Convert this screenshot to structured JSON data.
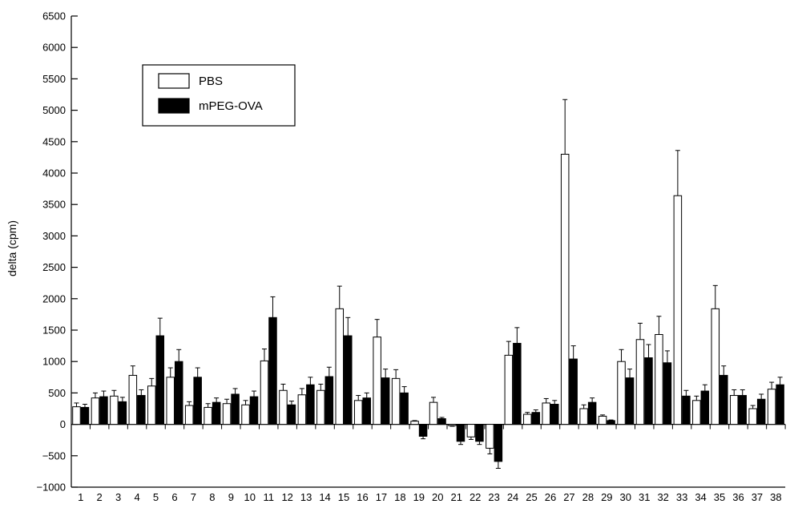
{
  "chart_data": {
    "type": "bar",
    "title": "",
    "xlabel": "",
    "ylabel": "delta (cpm)",
    "ylim": [
      -1000,
      6500
    ],
    "yticks": [
      -1000,
      -500,
      0,
      500,
      1000,
      1500,
      2000,
      2500,
      3000,
      3500,
      4000,
      4500,
      5000,
      5500,
      6000,
      6500
    ],
    "grid": false,
    "legend_position": "upper-left",
    "categories": [
      "1",
      "2",
      "3",
      "4",
      "5",
      "6",
      "7",
      "8",
      "9",
      "10",
      "11",
      "12",
      "13",
      "14",
      "15",
      "16",
      "17",
      "18",
      "19",
      "20",
      "21",
      "22",
      "23",
      "24",
      "25",
      "26",
      "27",
      "28",
      "29",
      "30",
      "31",
      "32",
      "33",
      "34",
      "35",
      "36",
      "37",
      "38"
    ],
    "series": [
      {
        "name": "PBS",
        "fill": "#ffffff",
        "values": [
          280,
          420,
          450,
          780,
          610,
          750,
          300,
          270,
          330,
          310,
          1010,
          540,
          470,
          540,
          1840,
          380,
          1390,
          730,
          50,
          350,
          -20,
          -200,
          -380,
          1100,
          160,
          340,
          4300,
          250,
          130,
          1000,
          1350,
          1430,
          3640,
          380,
          1840,
          460,
          250,
          560
        ],
        "errors": [
          60,
          80,
          90,
          150,
          120,
          150,
          60,
          60,
          70,
          70,
          190,
          100,
          100,
          100,
          360,
          80,
          280,
          140,
          10,
          80,
          10,
          40,
          90,
          220,
          30,
          70,
          870,
          60,
          20,
          190,
          260,
          290,
          720,
          70,
          370,
          90,
          50,
          110
        ]
      },
      {
        "name": "mPEG-OVA",
        "fill": "#000000",
        "values": [
          270,
          440,
          360,
          460,
          1410,
          1000,
          750,
          350,
          480,
          440,
          1700,
          310,
          630,
          760,
          1410,
          420,
          740,
          500,
          -190,
          90,
          -270,
          -270,
          -590,
          1290,
          190,
          320,
          1040,
          350,
          60,
          740,
          1060,
          980,
          450,
          530,
          780,
          460,
          400,
          630
        ],
        "errors": [
          50,
          90,
          70,
          90,
          280,
          190,
          150,
          70,
          90,
          90,
          330,
          60,
          120,
          150,
          290,
          80,
          140,
          100,
          40,
          20,
          50,
          50,
          110,
          250,
          40,
          60,
          210,
          70,
          10,
          140,
          210,
          190,
          90,
          100,
          150,
          90,
          80,
          120
        ]
      }
    ]
  }
}
